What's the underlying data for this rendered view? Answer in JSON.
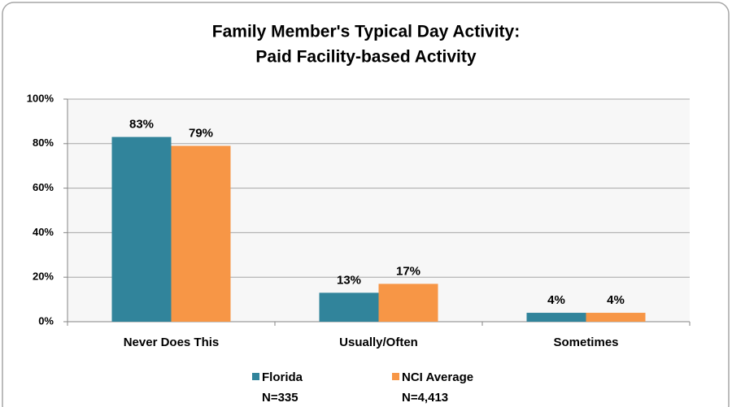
{
  "chart_data": {
    "type": "bar",
    "title": [
      "Family Member's Typical Day Activity:",
      "Paid Facility-based Activity"
    ],
    "categories": [
      "Never Does This",
      "Usually/Often",
      "Sometimes"
    ],
    "series": [
      {
        "name": "Florida",
        "note": "N=335",
        "color": "#31849b",
        "values": [
          83,
          13,
          4
        ],
        "value_labels": [
          "83%",
          "13%",
          "4%"
        ]
      },
      {
        "name": "NCI Average",
        "note": "N=4,413",
        "color": "#f79646",
        "values": [
          79,
          17,
          4
        ],
        "value_labels": [
          "79%",
          "17%",
          "4%"
        ]
      }
    ],
    "ylim": [
      0,
      100
    ],
    "yticks": [
      {
        "value": 0,
        "label": "0%"
      },
      {
        "value": 20,
        "label": "20%"
      },
      {
        "value": 40,
        "label": "40%"
      },
      {
        "value": 60,
        "label": "60%"
      },
      {
        "value": 80,
        "label": "80%"
      },
      {
        "value": 100,
        "label": "100%"
      }
    ],
    "grid": true
  }
}
